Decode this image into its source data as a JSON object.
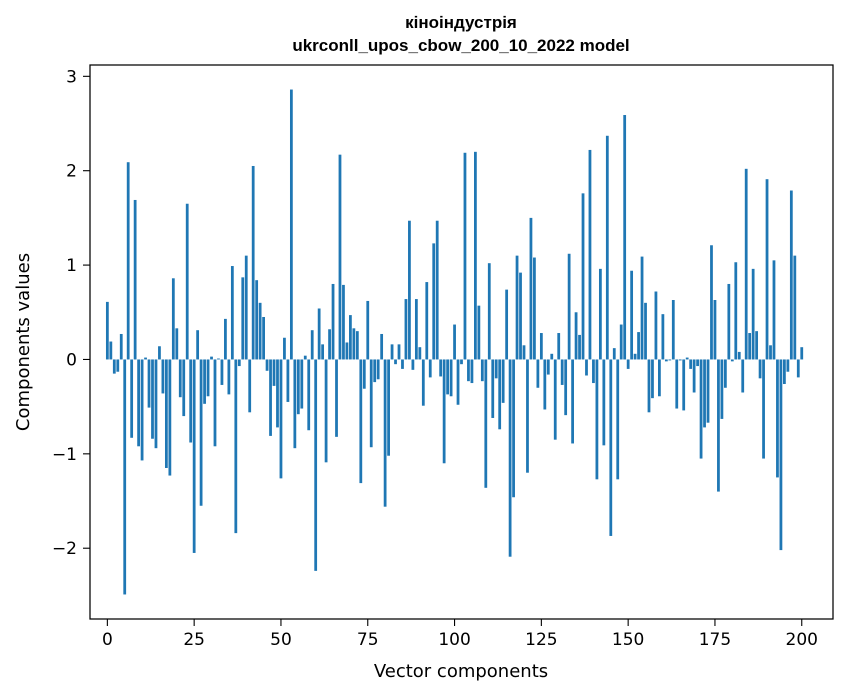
{
  "chart_data": {
    "type": "bar",
    "title_line1": "кіноіндустрія",
    "title_line2": "ukrconll_upos_cbow_200_10_2022 model",
    "xlabel": "Vector components",
    "ylabel": "Components values",
    "xlim": [
      -5,
      209
    ],
    "ylim": [
      -2.75,
      3.12
    ],
    "xticks": [
      0,
      25,
      50,
      75,
      100,
      125,
      150,
      175,
      200
    ],
    "xtick_labels": [
      "0",
      "25",
      "50",
      "75",
      "100",
      "125",
      "150",
      "175",
      "200"
    ],
    "yticks": [
      -2,
      -1,
      0,
      1,
      2,
      3
    ],
    "ytick_labels": [
      "−2",
      "−1",
      "0",
      "1",
      "2",
      "3"
    ],
    "grid": false,
    "bar_color": "#1f77b4",
    "values": [
      0.61,
      0.19,
      -0.15,
      -0.13,
      0.27,
      -2.49,
      2.09,
      -0.83,
      1.69,
      -0.92,
      -1.07,
      0.02,
      -0.51,
      -0.84,
      -0.94,
      0.14,
      -0.36,
      -1.15,
      -1.23,
      0.86,
      0.33,
      -0.4,
      -0.6,
      1.65,
      -0.88,
      -2.05,
      0.31,
      -1.55,
      -0.47,
      -0.39,
      0.03,
      -0.92,
      0.01,
      -0.27,
      0.43,
      -0.37,
      0.99,
      -1.84,
      -0.07,
      0.87,
      1.1,
      -0.56,
      2.05,
      0.84,
      0.6,
      0.45,
      -0.12,
      -0.81,
      -0.28,
      -0.72,
      -1.26,
      0.23,
      -0.45,
      2.86,
      -0.94,
      -0.58,
      -0.52,
      0.04,
      -0.75,
      0.31,
      -2.24,
      0.54,
      0.16,
      -1.09,
      0.32,
      0.8,
      -0.82,
      2.17,
      0.79,
      0.18,
      0.47,
      0.33,
      0.3,
      -1.31,
      -0.31,
      0.62,
      -0.93,
      -0.24,
      -0.21,
      0.27,
      -1.56,
      -1.02,
      0.16,
      -0.05,
      0.16,
      -0.1,
      0.64,
      1.47,
      -0.11,
      0.64,
      0.13,
      -0.49,
      0.82,
      -0.19,
      1.23,
      1.47,
      -0.18,
      -1.1,
      -0.37,
      -0.39,
      0.37,
      -0.48,
      -0.05,
      2.19,
      -0.23,
      -0.25,
      2.2,
      0.57,
      -0.23,
      -1.36,
      1.02,
      -0.62,
      -0.2,
      -0.74,
      -0.46,
      0.74,
      -2.09,
      -1.46,
      1.1,
      0.92,
      0.15,
      -1.2,
      1.5,
      1.08,
      -0.3,
      0.28,
      -0.53,
      -0.16,
      0.06,
      -0.85,
      0.28,
      -0.27,
      -0.59,
      1.12,
      -0.89,
      0.5,
      0.26,
      1.76,
      -0.17,
      2.22,
      -0.25,
      -1.27,
      0.96,
      -0.91,
      2.37,
      -1.87,
      0.12,
      -1.27,
      0.37,
      2.59,
      -0.1,
      0.94,
      0.06,
      0.29,
      1.09,
      0.6,
      -0.56,
      -0.41,
      0.72,
      -0.39,
      0.48,
      -0.02,
      -0.01,
      0.63,
      -0.52,
      -0.01,
      -0.54,
      0.02,
      -0.1,
      -0.35,
      -0.07,
      -1.05,
      -0.72,
      -0.67,
      1.21,
      0.63,
      -1.4,
      -0.63,
      -0.3,
      0.8,
      -0.02,
      1.03,
      0.08,
      -0.35,
      2.02,
      0.28,
      0.96,
      0.3,
      -0.2,
      -1.05,
      1.91,
      0.15,
      1.05,
      -1.25,
      -2.02,
      -0.26,
      -0.13,
      1.79,
      1.1,
      -0.19,
      0.13
    ]
  }
}
